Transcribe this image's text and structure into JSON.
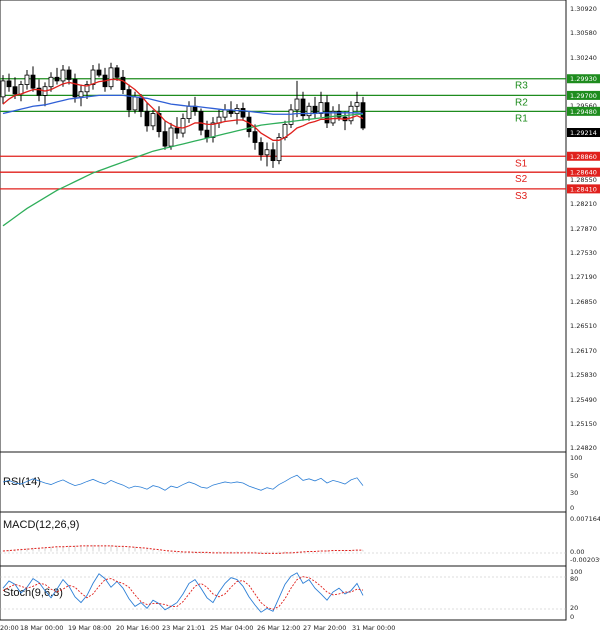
{
  "chart_data": [
    {
      "type": "candlestick",
      "panel": "price",
      "y_ticks": [
        "1.30920",
        "1.30580",
        "1.30240",
        "1.29900",
        "1.29560",
        "1.29220",
        "1.28880",
        "1.28550",
        "1.28210",
        "1.27870",
        "1.27530",
        "1.27190",
        "1.26850",
        "1.26510",
        "1.26170",
        "1.25830",
        "1.25490",
        "1.25150",
        "1.24820"
      ],
      "ylim": [
        1.2482,
        1.3092
      ],
      "current_price": "1.29214",
      "levels": [
        {
          "name": "R3",
          "value": "1.29930",
          "color": "#1e8c1e"
        },
        {
          "name": "R2",
          "value": "1.29700",
          "color": "#1e8c1e"
        },
        {
          "name": "R1",
          "value": "1.29480",
          "color": "#1e8c1e"
        },
        {
          "name": "S1",
          "value": "1.28860",
          "color": "#e0201c"
        },
        {
          "name": "S2",
          "value": "1.28640",
          "color": "#e0201c"
        },
        {
          "name": "S3",
          "value": "1.28410",
          "color": "#e0201c"
        }
      ],
      "candles": [
        [
          1.2968,
          1.2998,
          1.2958,
          1.299
        ],
        [
          1.299,
          1.3,
          1.2975,
          1.2982
        ],
        [
          1.2982,
          1.2995,
          1.2965,
          1.2972
        ],
        [
          1.2972,
          1.299,
          1.2962,
          1.2985
        ],
        [
          1.2985,
          1.3005,
          1.2978,
          1.2998
        ],
        [
          1.2998,
          1.301,
          1.2975,
          1.298
        ],
        [
          1.298,
          1.2992,
          1.2962,
          1.297
        ],
        [
          1.297,
          1.2988,
          1.2955,
          1.2982
        ],
        [
          1.2982,
          1.3002,
          1.2975,
          1.2995
        ],
        [
          1.2995,
          1.3008,
          1.2985,
          1.299
        ],
        [
          1.299,
          1.3012,
          1.2982,
          1.3005
        ],
        [
          1.3005,
          1.301,
          1.2985,
          1.2992
        ],
        [
          1.2992,
          1.3,
          1.296,
          1.2968
        ],
        [
          1.2968,
          1.2985,
          1.2955,
          1.2975
        ],
        [
          1.2975,
          1.299,
          1.2965,
          1.2985
        ],
        [
          1.2985,
          1.3012,
          1.2978,
          1.3005
        ],
        [
          1.3005,
          1.3014,
          1.2995,
          1.2998
        ],
        [
          1.2998,
          1.3008,
          1.2975,
          1.2982
        ],
        [
          1.2982,
          1.3015,
          1.2978,
          1.3008
        ],
        [
          1.3008,
          1.3012,
          1.299,
          1.2995
        ],
        [
          1.2995,
          1.3005,
          1.2972,
          1.2978
        ],
        [
          1.2978,
          1.2985,
          1.294,
          1.295
        ],
        [
          1.295,
          1.2975,
          1.2945,
          1.2968
        ],
        [
          1.2968,
          1.2972,
          1.294,
          1.2948
        ],
        [
          1.2948,
          1.296,
          1.292,
          1.2928
        ],
        [
          1.2928,
          1.295,
          1.2922,
          1.2945
        ],
        [
          1.2945,
          1.2955,
          1.2912,
          1.292
        ],
        [
          1.292,
          1.2935,
          1.2895,
          1.29
        ],
        [
          1.29,
          1.2932,
          1.2895,
          1.2925
        ],
        [
          1.2925,
          1.294,
          1.291,
          1.2918
        ],
        [
          1.2918,
          1.2945,
          1.2912,
          1.2938
        ],
        [
          1.2938,
          1.2962,
          1.2932,
          1.2955
        ],
        [
          1.2955,
          1.2968,
          1.2942,
          1.2948
        ],
        [
          1.2948,
          1.2952,
          1.2915,
          1.2922
        ],
        [
          1.2922,
          1.2935,
          1.2905,
          1.2912
        ],
        [
          1.2912,
          1.294,
          1.2905,
          1.2932
        ],
        [
          1.2932,
          1.295,
          1.2925,
          1.294
        ],
        [
          1.294,
          1.2958,
          1.2935,
          1.295
        ],
        [
          1.295,
          1.2962,
          1.294,
          1.2945
        ],
        [
          1.2945,
          1.2958,
          1.293,
          1.2952
        ],
        [
          1.2952,
          1.296,
          1.2935,
          1.294
        ],
        [
          1.294,
          1.2948,
          1.2912,
          1.292
        ],
        [
          1.292,
          1.293,
          1.2895,
          1.2905
        ],
        [
          1.2905,
          1.2912,
          1.288,
          1.2888
        ],
        [
          1.2888,
          1.2905,
          1.2872,
          1.2895
        ],
        [
          1.2895,
          1.2905,
          1.287,
          1.288
        ],
        [
          1.288,
          1.2918,
          1.2875,
          1.2912
        ],
        [
          1.2912,
          1.2935,
          1.2908,
          1.293
        ],
        [
          1.293,
          1.2958,
          1.2925,
          1.295
        ],
        [
          1.295,
          1.299,
          1.294,
          1.2965
        ],
        [
          1.2965,
          1.2975,
          1.2935,
          1.2942
        ],
        [
          1.2942,
          1.296,
          1.2935,
          1.2955
        ],
        [
          1.2955,
          1.2968,
          1.2938,
          1.2945
        ],
        [
          1.2945,
          1.2975,
          1.294,
          1.296
        ],
        [
          1.296,
          1.297,
          1.2925,
          1.2932
        ],
        [
          1.2932,
          1.2955,
          1.2928,
          1.2948
        ],
        [
          1.2948,
          1.2958,
          1.2935,
          1.294
        ],
        [
          1.294,
          1.2948,
          1.2922,
          1.2935
        ],
        [
          1.2935,
          1.2962,
          1.293,
          1.2955
        ],
        [
          1.2955,
          1.2975,
          1.2948,
          1.296
        ],
        [
          1.296,
          1.2968,
          1.2922,
          1.2925
        ]
      ],
      "ma_red": [
        1.2958,
        1.2965,
        1.297,
        1.2972,
        1.2975,
        1.2978,
        1.2978,
        1.2976,
        1.2978,
        1.2982,
        1.2986,
        1.2988,
        1.2986,
        1.2984,
        1.2983,
        1.2986,
        1.2989,
        1.299,
        1.2992,
        1.2992,
        1.299,
        1.2984,
        1.2978,
        1.297,
        1.296,
        1.2952,
        1.2944,
        1.2935,
        1.293,
        1.2926,
        1.2925,
        1.2928,
        1.2932,
        1.2932,
        1.293,
        1.293,
        1.2932,
        1.2934,
        1.2935,
        1.2936,
        1.2936,
        1.2932,
        1.2926,
        1.2918,
        1.2913,
        1.2908,
        1.2908,
        1.2912,
        1.2918,
        1.2925,
        1.2928,
        1.2932,
        1.2934,
        1.2937,
        1.2937,
        1.2938,
        1.2938,
        1.2937,
        1.2939,
        1.2942,
        1.2938
      ],
      "ma_blue": [
        1.2945,
        1.2947,
        1.2949,
        1.2951,
        1.2953,
        1.2955,
        1.2956,
        1.2957,
        1.2959,
        1.2961,
        1.2963,
        1.2965,
        1.2966,
        1.2967,
        1.2968,
        1.2969,
        1.297,
        1.297,
        1.297,
        1.297,
        1.297,
        1.2969,
        1.2968,
        1.2967,
        1.2966,
        1.2964,
        1.2962,
        1.296,
        1.2958,
        1.2957,
        1.2956,
        1.2955,
        1.2955,
        1.2954,
        1.2953,
        1.2952,
        1.2951,
        1.295,
        1.295,
        1.2949,
        1.2949,
        1.2948,
        1.2947,
        1.2946,
        1.2945,
        1.2944,
        1.2944,
        1.2944,
        1.2944,
        1.2945,
        1.2945,
        1.2945,
        1.2945,
        1.2946,
        1.2946,
        1.2946,
        1.2946,
        1.2946,
        1.2946,
        1.2946,
        1.2945
      ],
      "ma_green": [
        1.279,
        1.2796,
        1.2802,
        1.2808,
        1.2814,
        1.2819,
        1.2824,
        1.2829,
        1.2834,
        1.2839,
        1.2843,
        1.2847,
        1.2851,
        1.2855,
        1.2859,
        1.2863,
        1.2866,
        1.2869,
        1.2872,
        1.2875,
        1.2878,
        1.2881,
        1.2884,
        1.2887,
        1.289,
        1.2893,
        1.2895,
        1.2897,
        1.2899,
        1.2901,
        1.2903,
        1.2905,
        1.2907,
        1.2909,
        1.2911,
        1.2913,
        1.2915,
        1.2917,
        1.2919,
        1.2921,
        1.2923,
        1.2925,
        1.2927,
        1.2929,
        1.293,
        1.2931,
        1.2932,
        1.2933,
        1.2934,
        1.2935,
        1.2936,
        1.2937,
        1.2938,
        1.2939,
        1.294,
        1.2941,
        1.2942,
        1.2942,
        1.2943,
        1.2944,
        1.2944
      ]
    },
    {
      "type": "line",
      "panel": "rsi",
      "name": "RSI(14)",
      "y_ticks": [
        "100",
        "50",
        "30",
        "0"
      ],
      "ylim": [
        0,
        100
      ],
      "values": [
        52,
        55,
        50,
        48,
        53,
        58,
        54,
        50,
        47,
        52,
        56,
        50,
        45,
        48,
        53,
        57,
        52,
        48,
        55,
        50,
        46,
        40,
        44,
        42,
        38,
        45,
        42,
        36,
        44,
        41,
        47,
        52,
        48,
        42,
        40,
        46,
        49,
        52,
        50,
        52,
        50,
        44,
        40,
        36,
        41,
        38,
        47,
        53,
        60,
        65,
        55,
        58,
        54,
        59,
        50,
        55,
        52,
        48,
        56,
        60,
        45
      ],
      "color": "#2d7fd6"
    },
    {
      "type": "bar",
      "panel": "macd",
      "name": "MACD(12,26,9)",
      "y_ticks": [
        "0.007164",
        "0.00",
        "-0.002039"
      ],
      "ylim": [
        -0.002039,
        0.007164
      ],
      "histogram": [
        0.0002,
        0.0003,
        0.0005,
        0.0006,
        0.0007,
        0.0008,
        0.0008,
        0.0009,
        0.001,
        0.0011,
        0.0012,
        0.0012,
        0.0013,
        0.0013,
        0.0014,
        0.0014,
        0.0014,
        0.0014,
        0.0013,
        0.0013,
        0.0012,
        0.0011,
        0.001,
        0.0008,
        0.0006,
        0.0004,
        0.0002,
        0.0,
        -0.0001,
        -0.0002,
        -0.0002,
        -0.0003,
        -0.0003,
        -0.0003,
        -0.0004,
        -0.0004,
        -0.0004,
        -0.0003,
        -0.0003,
        -0.0003,
        -0.0003,
        -0.0004,
        -0.0004,
        -0.0005,
        -0.0005,
        -0.0005,
        -0.0004,
        -0.0003,
        -0.0002,
        -0.0001,
        0.0,
        0.0001,
        0.0001,
        0.0002,
        0.0002,
        0.0002,
        0.0003,
        0.0003,
        0.0003,
        0.0004,
        0.0003
      ],
      "signal": [
        0.0001,
        0.0002,
        0.0003,
        0.0004,
        0.0005,
        0.0006,
        0.0007,
        0.0008,
        0.0009,
        0.001,
        0.001,
        0.0011,
        0.0011,
        0.0012,
        0.0012,
        0.0012,
        0.0012,
        0.0012,
        0.0012,
        0.0011,
        0.0011,
        0.001,
        0.0009,
        0.0008,
        0.0007,
        0.0005,
        0.0004,
        0.0002,
        0.0001,
        0.0,
        -0.0001,
        -0.0001,
        -0.0002,
        -0.0002,
        -0.0002,
        -0.0003,
        -0.0003,
        -0.0003,
        -0.0003,
        -0.0003,
        -0.0003,
        -0.0003,
        -0.0003,
        -0.0004,
        -0.0004,
        -0.0004,
        -0.0004,
        -0.0003,
        -0.0003,
        -0.0002,
        -0.0001,
        0.0,
        0.0,
        0.0001,
        0.0001,
        0.0002,
        0.0002,
        0.0002,
        0.0002,
        0.0003,
        0.0003
      ]
    },
    {
      "type": "line",
      "panel": "stoch",
      "name": "Stoch(9,6,3)",
      "y_ticks": [
        "100",
        "80",
        "20",
        "0"
      ],
      "ylim": [
        0,
        100
      ],
      "main": [
        60,
        75,
        68,
        50,
        62,
        80,
        72,
        55,
        40,
        58,
        78,
        64,
        42,
        30,
        45,
        70,
        90,
        80,
        62,
        74,
        60,
        38,
        22,
        30,
        18,
        35,
        28,
        15,
        22,
        30,
        48,
        70,
        78,
        60,
        40,
        30,
        52,
        70,
        82,
        78,
        64,
        42,
        25,
        10,
        18,
        12,
        40,
        68,
        85,
        92,
        70,
        78,
        60,
        48,
        35,
        52,
        60,
        48,
        55,
        70,
        45
      ],
      "signal": [
        55,
        62,
        68,
        64,
        60,
        64,
        70,
        68,
        58,
        52,
        58,
        66,
        62,
        50,
        40,
        48,
        64,
        78,
        80,
        74,
        70,
        62,
        46,
        32,
        26,
        28,
        28,
        26,
        22,
        22,
        32,
        48,
        64,
        70,
        62,
        48,
        42,
        48,
        62,
        74,
        76,
        66,
        48,
        30,
        20,
        16,
        22,
        38,
        60,
        78,
        84,
        82,
        74,
        64,
        52,
        46,
        48,
        52,
        52,
        58,
        56
      ],
      "main_color": "#2d7fd6",
      "signal_color": "#e0201c"
    }
  ],
  "x_ticks": [
    "20:00",
    "18 Mar 00:00",
    "19 Mar 08:00",
    "20 Mar 16:00",
    "23 Mar 21:01",
    "25 Mar 04:00",
    "26 Mar 12:00",
    "27 Mar 20:00",
    "31 Mar 00:00"
  ]
}
